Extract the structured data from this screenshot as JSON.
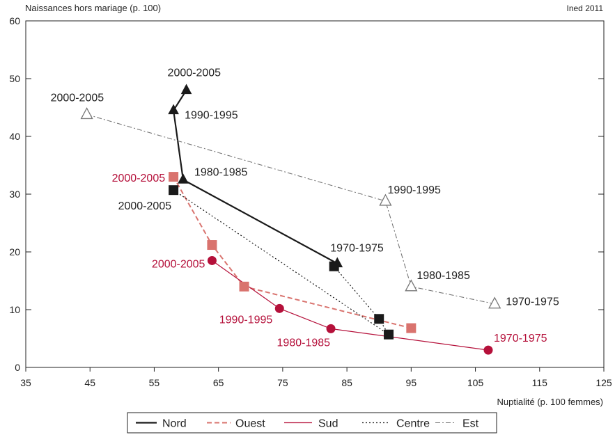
{
  "chart_data": {
    "type": "line",
    "ylabel": "Naissances hors mariage (p. 100)",
    "xlabel": "Nuptialité (p. 100 femmes)",
    "credit": "Ined 2011",
    "xlim": [
      35,
      125
    ],
    "ylim": [
      0,
      60
    ],
    "x_ticks": [
      35,
      45,
      55,
      65,
      75,
      85,
      95,
      105,
      115,
      125
    ],
    "y_ticks": [
      0,
      10,
      20,
      30,
      40,
      50,
      60
    ],
    "grid": false,
    "legend_position": "bottom",
    "series": [
      {
        "name": "Nord",
        "color": "#1a1a1a",
        "dash": "solid",
        "marker": "triangle-filled",
        "points": [
          {
            "x": 83.5,
            "y": 18,
            "label": "1970-1975"
          },
          {
            "x": 59.5,
            "y": 32.5,
            "label": "1980-1985"
          },
          {
            "x": 58,
            "y": 44.5,
            "label": "1990-1995"
          },
          {
            "x": 60,
            "y": 48,
            "label": "2000-2005"
          }
        ]
      },
      {
        "name": "Ouest",
        "color": "#d9736e",
        "dash": "dashed",
        "marker": "square-filled",
        "points": [
          {
            "x": 95,
            "y": 6.8,
            "label": ""
          },
          {
            "x": 69,
            "y": 14,
            "label": ""
          },
          {
            "x": 64,
            "y": 21.2,
            "label": ""
          },
          {
            "x": 58,
            "y": 33,
            "label": "2000-2005"
          }
        ]
      },
      {
        "name": "Sud",
        "color": "#b5103a",
        "dash": "solid",
        "marker": "circle-filled",
        "points": [
          {
            "x": 107,
            "y": 3,
            "label": "1970-1975"
          },
          {
            "x": 82.5,
            "y": 6.7,
            "label": "1980-1985"
          },
          {
            "x": 74.5,
            "y": 10.2,
            "label": "1990-1995"
          },
          {
            "x": 64,
            "y": 18.5,
            "label": "2000-2005"
          }
        ]
      },
      {
        "name": "Centre",
        "color": "#1a1a1a",
        "dash": "dotted",
        "marker": "square-filled",
        "points": [
          {
            "x": 83,
            "y": 17.5,
            "label": ""
          },
          {
            "x": 90,
            "y": 8.4,
            "label": ""
          },
          {
            "x": 91.5,
            "y": 5.7,
            "label": ""
          },
          {
            "x": 58,
            "y": 30.7,
            "label": "2000-2005"
          }
        ]
      },
      {
        "name": "Est",
        "color": "#777777",
        "dash": "dashdot",
        "marker": "triangle-open",
        "points": [
          {
            "x": 108,
            "y": 11,
            "label": "1970-1975"
          },
          {
            "x": 95,
            "y": 14,
            "label": "1980-1985"
          },
          {
            "x": 91,
            "y": 28.8,
            "label": "1990-1995"
          },
          {
            "x": 44.5,
            "y": 43.8,
            "label": "2000-2005"
          }
        ]
      }
    ]
  }
}
